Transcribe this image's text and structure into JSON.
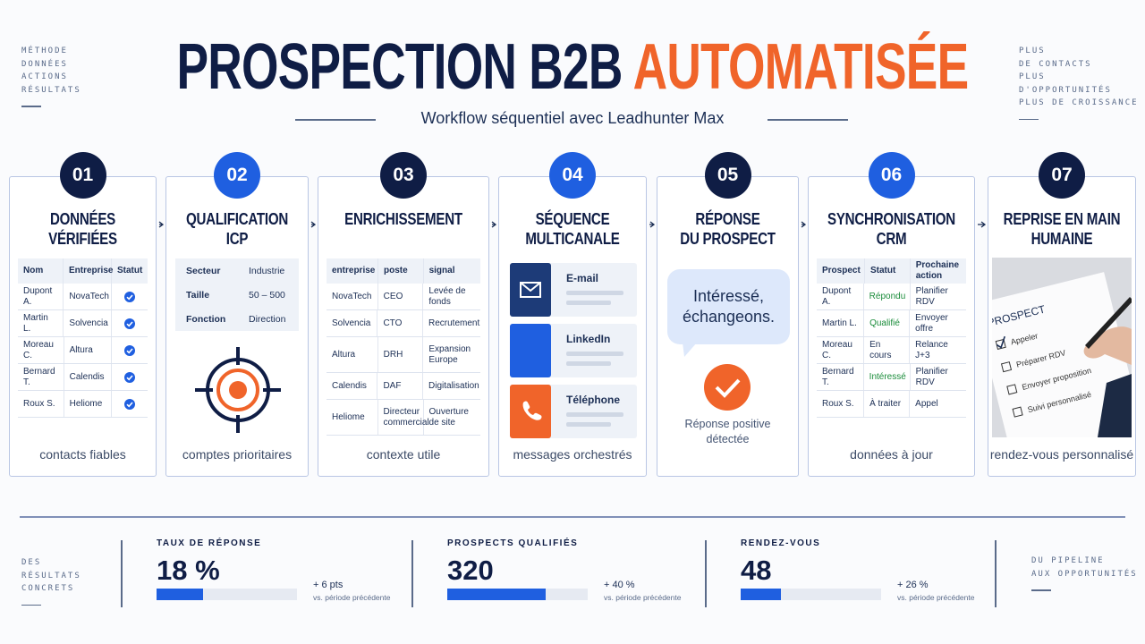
{
  "side_left": [
    "MÉTHODE",
    "DONNÉES",
    "ACTIONS",
    "RÉSULTATS"
  ],
  "side_right": [
    "PLUS",
    "DE CONTACTS",
    "PLUS D'OPPORTUNITÉS",
    "PLUS DE CROISSANCE"
  ],
  "title": {
    "main": "PROSPECTION B2B",
    "accent": "AUTOMATISÉE"
  },
  "subtitle": "Workflow séquentiel avec Leadhunter Max",
  "steps": [
    {
      "number": "01",
      "color": "#0f1d45",
      "title": [
        "DONNÉES",
        "VÉRIFIÉES"
      ],
      "caption": "contacts fiables",
      "content": {
        "type": "checktable",
        "columns": [
          "Nom",
          "Entreprise",
          "Statut"
        ],
        "rows": [
          [
            "Dupont A.",
            "NovaTech"
          ],
          [
            "Martin L.",
            "Solvencia"
          ],
          [
            "Moreau C.",
            "Altura"
          ],
          [
            "Bernard T.",
            "Calendis"
          ],
          [
            "Roux S.",
            "Heliome"
          ]
        ]
      }
    },
    {
      "number": "02",
      "color": "#1f5fe0",
      "title": [
        "QUALIFICATION",
        "ICP"
      ],
      "caption": "comptes prioritaires",
      "content": {
        "type": "fields",
        "rows": [
          [
            "Secteur",
            "Industrie"
          ],
          [
            "Taille",
            "50 – 500"
          ],
          [
            "Fonction",
            "Direction"
          ]
        ]
      }
    },
    {
      "number": "03",
      "color": "#0f1d45",
      "title": [
        "ENRICHISSEMENT"
      ],
      "caption": "contexte utile",
      "content": {
        "type": "table",
        "columns": [
          "entreprise",
          "poste",
          "signal"
        ],
        "rows": [
          [
            "NovaTech",
            "CEO",
            "Levée de fonds"
          ],
          [
            "Solvencia",
            "CTO",
            "Recrutement"
          ],
          [
            "Altura",
            "DRH",
            "Expansion Europe"
          ],
          [
            "Calendis",
            "DAF",
            "Digitalisation"
          ],
          [
            "Heliome",
            "Directeur commercial",
            "Ouverture de site"
          ]
        ]
      }
    },
    {
      "number": "04",
      "color": "#1f5fe0",
      "title": [
        "SÉQUENCE",
        "MULTICANALE"
      ],
      "caption": "messages orchestrés",
      "content": {
        "type": "channels",
        "items": [
          {
            "label": "E-mail",
            "color": "#1d3b78"
          },
          {
            "label": "LinkedIn",
            "color": "#1f5fe0"
          },
          {
            "label": "Téléphone",
            "color": "#f0642a"
          }
        ]
      }
    },
    {
      "number": "05",
      "color": "#0f1d45",
      "title": [
        "RÉPONSE",
        "DU PROSPECT"
      ],
      "caption": null,
      "content": {
        "type": "reply",
        "message": "Intéressé, échangeons.",
        "result": [
          "Réponse positive",
          "détectée"
        ]
      }
    },
    {
      "number": "06",
      "color": "#1f5fe0",
      "title": [
        "SYNCHRONISATION",
        "CRM"
      ],
      "caption": "données à jour",
      "content": {
        "type": "table",
        "columns": [
          "Prospect",
          "Statut",
          "Prochaine action"
        ],
        "rows": [
          [
            "Dupont A.",
            "Répondu",
            "Planifier RDV"
          ],
          [
            "Martin L.",
            "Qualifié",
            "Envoyer offre"
          ],
          [
            "Moreau C.",
            "En cours",
            "Relance J+3"
          ],
          [
            "Bernard T.",
            "Intéressé",
            "Planifier RDV"
          ],
          [
            "Roux S.",
            "À traiter",
            "Appel"
          ]
        ],
        "status_colors": [
          "#1a8c3a",
          "#1a8c3a",
          null,
          "#1a8c3a",
          null
        ]
      }
    },
    {
      "number": "07",
      "color": "#0f1d45",
      "title": [
        "REPRISE EN MAIN",
        "HUMAINE"
      ],
      "caption": "rendez-vous personnalisé",
      "content": {
        "type": "checklist",
        "heading": "PROSPECT",
        "items": [
          "Appeler",
          "Préparer RDV",
          "Envoyer proposition",
          "Suivi personnalisé"
        ]
      }
    }
  ],
  "footer_left": [
    "DES",
    "RÉSULTATS",
    "CONCRETS"
  ],
  "footer_right": [
    "DU PIPELINE",
    "AUX OPPORTUNITÉS"
  ],
  "kpis": [
    {
      "label": "TAUX DE RÉPONSE",
      "value": "18 %",
      "delta": "+ 6 pts",
      "note": "vs. période précédente"
    },
    {
      "label": "PROSPECTS QUALIFIÉS",
      "value": "320",
      "delta": "+ 40 %",
      "note": "vs. période précédente"
    },
    {
      "label": "RENDEZ-VOUS",
      "value": "48",
      "delta": "+ 26 %",
      "note": "vs. période précédente"
    }
  ]
}
